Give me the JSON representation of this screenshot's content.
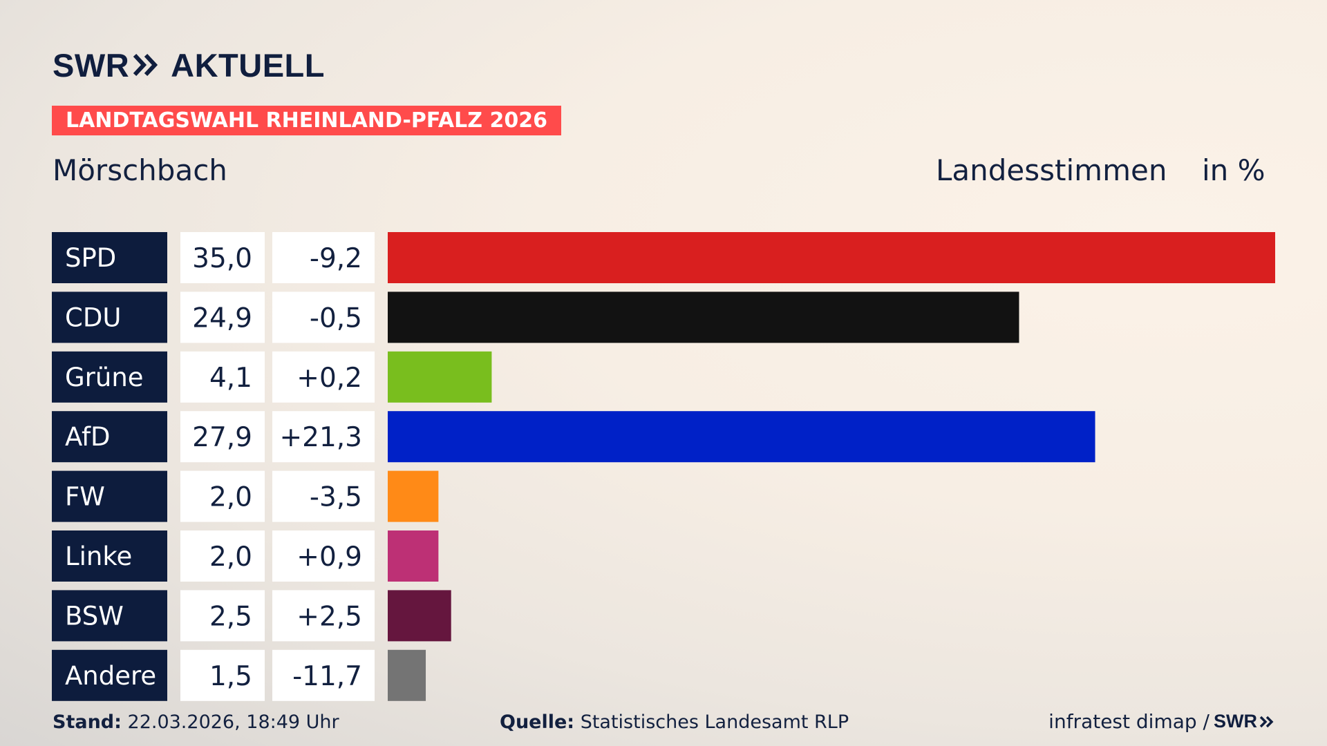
{
  "brand": {
    "name": "SWR",
    "suffix": "AKTUELL"
  },
  "banner": "LANDTAGSWAHL RHEINLAND-PFALZ 2026",
  "place": "Mörschbach",
  "header": {
    "vote_type": "Landesstimmen",
    "unit": "in %"
  },
  "footer": {
    "stand_label": "Stand:",
    "stand_value": "22.03.2026, 18:49 Uhr",
    "source_label": "Quelle:",
    "source_value": "Statistisches Landesamt RLP",
    "credit": "infratest dimap /",
    "credit_brand": "SWR"
  },
  "colors": {
    "banner": "#ff4b4b",
    "party_label_bg": "#0d1c3d",
    "value_box_bg": "#ffffff",
    "text": "#12203f"
  },
  "chart_data": {
    "type": "bar",
    "orientation": "horizontal",
    "categories": [
      "SPD",
      "CDU",
      "Grüne",
      "AfD",
      "FW",
      "Linke",
      "BSW",
      "Andere"
    ],
    "values": [
      35.0,
      24.9,
      4.1,
      27.9,
      2.0,
      2.0,
      2.5,
      1.5
    ],
    "value_labels": [
      "35,0",
      "24,9",
      "4,1",
      "27,9",
      "2,0",
      "2,0",
      "2,5",
      "1,5"
    ],
    "changes": [
      -9.2,
      -0.5,
      0.2,
      21.3,
      -3.5,
      0.9,
      2.5,
      -11.7
    ],
    "change_labels": [
      "-9,2",
      "-0,5",
      "+0,2",
      "+21,3",
      "-3,5",
      "+0,9",
      "+2,5",
      "-11,7"
    ],
    "bar_colors": [
      "#d91f1f",
      "#121212",
      "#79be1e",
      "#0021c7",
      "#ff8a17",
      "#bd3075",
      "#65163e",
      "#747474"
    ],
    "title": "Landesstimmen",
    "xlabel": "",
    "ylabel": "in %",
    "xlim": [
      0,
      35.0
    ]
  }
}
